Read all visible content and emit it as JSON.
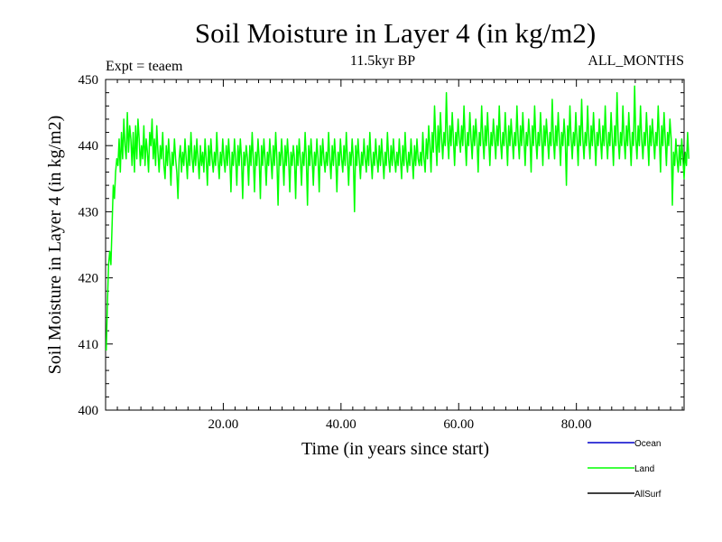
{
  "chart_data": {
    "type": "line",
    "title": "Soil Moisture in Layer 4 (in kg/m2)",
    "subtitle": "11.5kyr BP",
    "expt_label": "Expt = teaem",
    "months_label": "ALL_MONTHS",
    "xlabel": "Time (in years since start)",
    "ylabel": "Soil Moisture in Layer 4 (in kg/m2)",
    "xlim": [
      0,
      98.3
    ],
    "ylim": [
      400,
      450
    ],
    "x_ticks": [
      20,
      40,
      60,
      80
    ],
    "x_tick_labels": [
      "20.00",
      "40.00",
      "60.00",
      "80.00"
    ],
    "y_ticks": [
      400,
      410,
      420,
      430,
      440,
      450
    ],
    "y_tick_labels": [
      "400",
      "410",
      "420",
      "430",
      "440",
      "450"
    ],
    "grid": false,
    "legend": [
      {
        "name": "Ocean",
        "color": "#0000cc"
      },
      {
        "name": "Land",
        "color": "#00ff00"
      },
      {
        "name": "AllSurf",
        "color": "#000000"
      }
    ],
    "series": [
      {
        "name": "Land",
        "color": "#00ff00",
        "x_start": 0.1,
        "x_step": 0.2,
        "values": [
          409,
          416,
          422,
          424,
          422,
          428,
          434,
          432,
          436,
          438,
          437,
          441,
          436,
          442,
          438,
          444,
          440,
          438,
          445,
          439,
          443,
          441,
          437,
          442,
          436,
          443,
          438,
          444,
          441,
          437,
          440,
          438,
          443,
          437,
          441,
          439,
          436,
          442,
          440,
          444,
          438,
          441,
          437,
          443,
          439,
          436,
          440,
          438,
          442,
          437,
          435,
          440,
          437,
          441,
          438,
          434,
          439,
          437,
          441,
          438,
          436,
          432,
          438,
          440,
          436,
          439,
          437,
          441,
          438,
          435,
          440,
          437,
          442,
          438,
          436,
          440,
          437,
          441,
          438,
          435,
          440,
          437,
          439,
          436,
          441,
          438,
          434,
          440,
          437,
          441,
          438,
          436,
          439,
          437,
          442,
          438,
          435,
          439,
          437,
          441,
          438,
          436,
          440,
          437,
          441,
          438,
          433,
          439,
          437,
          441,
          438,
          434,
          440,
          437,
          441,
          438,
          432,
          439,
          437,
          440,
          438,
          434,
          440,
          437,
          442,
          438,
          433,
          439,
          437,
          441,
          438,
          432,
          440,
          437,
          441,
          438,
          434,
          439,
          437,
          441,
          438,
          435,
          440,
          437,
          442,
          438,
          431,
          439,
          437,
          441,
          438,
          434,
          440,
          437,
          441,
          438,
          433,
          439,
          437,
          440,
          438,
          432,
          440,
          437,
          441,
          438,
          434,
          439,
          437,
          442,
          438,
          431,
          440,
          437,
          441,
          438,
          434,
          439,
          437,
          441,
          438,
          433,
          440,
          437,
          441,
          438,
          436,
          439,
          437,
          442,
          438,
          435,
          440,
          437,
          441,
          438,
          433,
          439,
          437,
          441,
          438,
          436,
          440,
          437,
          442,
          438,
          434,
          439,
          437,
          441,
          438,
          430,
          440,
          437,
          441,
          438,
          435,
          439,
          437,
          441,
          438,
          436,
          440,
          437,
          442,
          438,
          435,
          439,
          437,
          441,
          438,
          436,
          440,
          437,
          441,
          438,
          435,
          439,
          437,
          442,
          438,
          436,
          440,
          437,
          441,
          438,
          436,
          439,
          437,
          441,
          438,
          435,
          440,
          437,
          442,
          438,
          436,
          439,
          437,
          441,
          438,
          435,
          440,
          437,
          441,
          438,
          437,
          439,
          437,
          442,
          438,
          436,
          441,
          438,
          443,
          440,
          436,
          442,
          439,
          446,
          441,
          437,
          443,
          439,
          445,
          441,
          438,
          442,
          440,
          448,
          441,
          438,
          443,
          440,
          445,
          441,
          437,
          442,
          440,
          444,
          441,
          439,
          443,
          440,
          446,
          441,
          437,
          442,
          440,
          445,
          441,
          438,
          443,
          440,
          444,
          441,
          436,
          442,
          440,
          446,
          441,
          438,
          443,
          440,
          445,
          441,
          437,
          442,
          440,
          444,
          441,
          438,
          443,
          440,
          446,
          441,
          438,
          442,
          440,
          445,
          441,
          437,
          443,
          440,
          444,
          441,
          438,
          442,
          440,
          446,
          441,
          438,
          443,
          440,
          445,
          441,
          437,
          442,
          440,
          444,
          441,
          436,
          443,
          440,
          446,
          441,
          438,
          442,
          440,
          445,
          441,
          437,
          443,
          440,
          444,
          441,
          438,
          442,
          440,
          447,
          441,
          438,
          443,
          440,
          445,
          441,
          437,
          442,
          440,
          444,
          441,
          434,
          443,
          440,
          446,
          441,
          438,
          442,
          440,
          445,
          441,
          437,
          443,
          440,
          447,
          441,
          438,
          442,
          440,
          446,
          441,
          438,
          443,
          440,
          445,
          441,
          437,
          442,
          440,
          444,
          441,
          438,
          443,
          440,
          446,
          441,
          438,
          442,
          440,
          445,
          441,
          437,
          443,
          440,
          448,
          441,
          438,
          442,
          440,
          446,
          441,
          438,
          443,
          440,
          445,
          441,
          437,
          442,
          440,
          449,
          441,
          438,
          443,
          440,
          446,
          441,
          438,
          442,
          440,
          445,
          441,
          437,
          443,
          440,
          444,
          441,
          438,
          442,
          440,
          446,
          441,
          436,
          443,
          440,
          445,
          441,
          437,
          442,
          440,
          444,
          441,
          431,
          439,
          437,
          441,
          438,
          436,
          440,
          437,
          441,
          438,
          435,
          439,
          437,
          442,
          438
        ]
      }
    ]
  }
}
